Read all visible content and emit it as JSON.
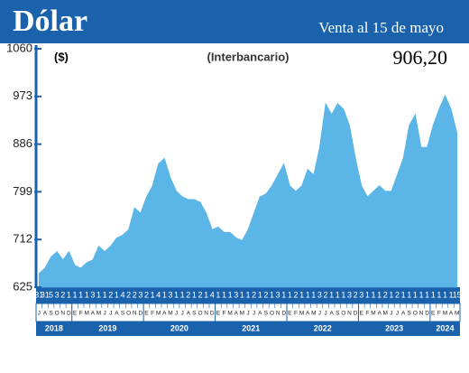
{
  "chart_data": {
    "type": "area",
    "title": "Dólar",
    "subtitle": "Venta al 15 de mayo",
    "y_label": "($)",
    "annotation": "(Interbancario)",
    "latest": "906,20",
    "color": "#5bb5e6",
    "categories": [
      "J",
      "A",
      "S",
      "O",
      "N",
      "D",
      "E",
      "F",
      "M",
      "A",
      "M",
      "J",
      "J",
      "A",
      "S",
      "O",
      "N",
      "D",
      "E",
      "F",
      "M",
      "A",
      "M",
      "J",
      "J",
      "A",
      "S",
      "O",
      "N",
      "D",
      "E",
      "F",
      "M",
      "A",
      "M",
      "J",
      "J",
      "A",
      "S",
      "O",
      "N",
      "D",
      "E",
      "F",
      "M",
      "A",
      "M",
      "J",
      "J",
      "A",
      "S",
      "O",
      "N",
      "D",
      "E",
      "F",
      "M",
      "A",
      "M",
      "J",
      "J",
      "A",
      "S",
      "O",
      "N",
      "D",
      "E",
      "F",
      "M",
      "A",
      "M"
    ],
    "days": [
      31,
      31,
      5,
      3,
      2,
      1,
      1,
      1,
      1,
      3,
      1,
      1,
      2,
      1,
      4,
      2,
      2,
      3,
      2,
      1,
      4,
      1,
      3,
      1,
      1,
      2,
      1,
      2,
      1,
      4,
      1,
      1,
      1,
      3,
      1,
      1,
      2,
      1,
      2,
      1,
      3,
      1,
      1,
      2,
      1,
      1,
      1,
      3,
      2,
      1,
      1,
      1,
      3,
      2,
      3,
      1,
      1,
      1,
      2,
      1,
      2,
      1,
      1,
      1,
      1,
      1,
      1,
      1,
      1,
      1,
      15
    ],
    "years": [
      "2018",
      "2019",
      "2020",
      "2021",
      "2022",
      "2023",
      "2024"
    ],
    "values": [
      650,
      660,
      680,
      690,
      675,
      690,
      665,
      660,
      670,
      675,
      700,
      690,
      700,
      715,
      720,
      730,
      770,
      760,
      790,
      810,
      850,
      860,
      825,
      800,
      790,
      785,
      785,
      780,
      760,
      730,
      735,
      725,
      725,
      715,
      710,
      730,
      760,
      790,
      795,
      810,
      830,
      850,
      810,
      800,
      810,
      840,
      830,
      880,
      960,
      940,
      960,
      950,
      920,
      860,
      810,
      790,
      800,
      810,
      800,
      800,
      830,
      860,
      920,
      940,
      880,
      880,
      920,
      950,
      975,
      950,
      906.2
    ],
    "ylim": [
      625,
      1060
    ],
    "yticks": [
      625,
      712,
      799,
      886,
      973,
      1060
    ]
  }
}
